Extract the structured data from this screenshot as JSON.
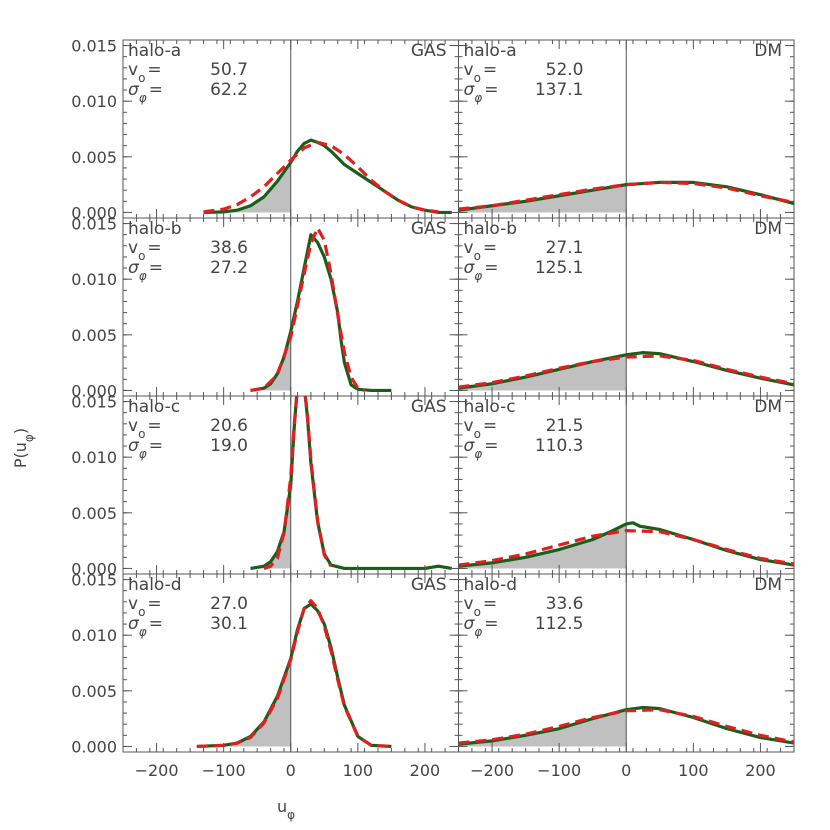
{
  "figure": {
    "ylabel": "P(u",
    "ylabel_sub": "φ",
    "ylabel_close": ")",
    "xlabel": "u",
    "xlabel_sub": "φ"
  },
  "chart_data": {
    "type": "line",
    "xlim": [
      -250,
      250
    ],
    "ylim": [
      -0.0005,
      0.0155
    ],
    "xticks": [
      -200,
      -100,
      0,
      100,
      200
    ],
    "xtick_labels": [
      "−200",
      "−100",
      "0",
      "100",
      "200"
    ],
    "yticks": [
      0.0,
      0.005,
      0.01,
      0.015
    ],
    "ytick_labels": [
      "0.000",
      "0.005",
      "0.010",
      "0.015"
    ],
    "grid": false,
    "vertical_line_x": 0,
    "series_styles": {
      "measured": {
        "color": "#1a5e1a",
        "style": "solid"
      },
      "model": {
        "color": "#e02020",
        "style": "dashed"
      },
      "shade": {
        "color": "#c0c0c0",
        "region": "x < 0 under measured curve"
      }
    },
    "panels": [
      {
        "row": 0,
        "col": 0,
        "halo": "halo-a",
        "component": "GAS",
        "vo_label": "v",
        "vo_sub": "o",
        "vo": "50.7",
        "sigma_label": "σ",
        "sigma_sub": "φ",
        "sigma": "62.2",
        "x": [
          -130,
          -100,
          -80,
          -60,
          -40,
          -20,
          0,
          10,
          20,
          30,
          40,
          50,
          60,
          70,
          80,
          100,
          120,
          140,
          160,
          180,
          200,
          220,
          240
        ],
        "y": [
          0.0,
          5e-05,
          0.0002,
          0.0006,
          0.0014,
          0.0028,
          0.0045,
          0.0055,
          0.0062,
          0.0065,
          0.0063,
          0.006,
          0.0055,
          0.0049,
          0.0043,
          0.0035,
          0.0027,
          0.0019,
          0.0011,
          0.0005,
          0.0002,
          0.0,
          0.0
        ],
        "model_x": [
          -130,
          -100,
          -80,
          -60,
          -40,
          -20,
          0,
          20,
          40,
          60,
          80,
          100,
          120,
          140,
          160,
          180,
          200,
          220
        ],
        "model_y": [
          5e-05,
          0.0003,
          0.0007,
          0.0014,
          0.0023,
          0.0035,
          0.0047,
          0.0058,
          0.0063,
          0.006,
          0.0052,
          0.0041,
          0.0029,
          0.0019,
          0.0011,
          0.0005,
          0.0002,
          5e-05
        ]
      },
      {
        "row": 0,
        "col": 1,
        "halo": "halo-a",
        "component": "DM",
        "vo_label": "v",
        "vo_sub": "o",
        "vo": "52.0",
        "sigma_label": "σ",
        "sigma_sub": "φ",
        "sigma": "137.1",
        "x": [
          -250,
          -200,
          -150,
          -100,
          -50,
          0,
          50,
          100,
          150,
          200,
          250
        ],
        "y": [
          0.0002,
          0.0006,
          0.001,
          0.0015,
          0.002,
          0.0025,
          0.0027,
          0.0027,
          0.0023,
          0.0016,
          0.0008
        ],
        "model_x": [
          -250,
          -200,
          -150,
          -100,
          -50,
          0,
          50,
          100,
          150,
          200,
          250
        ],
        "model_y": [
          0.0003,
          0.0006,
          0.0011,
          0.0016,
          0.0021,
          0.0025,
          0.0027,
          0.0026,
          0.0022,
          0.0015,
          0.0009
        ]
      },
      {
        "row": 1,
        "col": 0,
        "halo": "halo-b",
        "component": "GAS",
        "vo_label": "v",
        "vo_sub": "o",
        "vo": "38.6",
        "sigma_label": "σ",
        "sigma_sub": "φ",
        "sigma": "27.2",
        "x": [
          -60,
          -40,
          -30,
          -20,
          -10,
          0,
          10,
          20,
          30,
          40,
          50,
          60,
          70,
          75,
          80,
          90,
          100,
          120,
          150
        ],
        "y": [
          0.0,
          0.0002,
          0.0006,
          0.0015,
          0.003,
          0.0053,
          0.008,
          0.011,
          0.014,
          0.0133,
          0.012,
          0.01,
          0.007,
          0.0045,
          0.0025,
          0.0005,
          0.0001,
          0.0,
          0.0
        ],
        "model_x": [
          -60,
          -40,
          -20,
          0,
          10,
          20,
          30,
          40,
          50,
          60,
          70,
          80,
          90,
          100,
          110
        ],
        "model_y": [
          0.0,
          0.0002,
          0.0014,
          0.0048,
          0.0076,
          0.0105,
          0.0132,
          0.0146,
          0.0135,
          0.0105,
          0.0068,
          0.0034,
          0.0012,
          0.0002,
          0.0
        ]
      },
      {
        "row": 1,
        "col": 1,
        "halo": "halo-b",
        "component": "DM",
        "vo_label": "v",
        "vo_sub": "o",
        "vo": "27.1",
        "sigma_label": "σ",
        "sigma_sub": "φ",
        "sigma": "125.1",
        "x": [
          -250,
          -200,
          -150,
          -100,
          -50,
          0,
          25,
          50,
          100,
          150,
          200,
          250
        ],
        "y": [
          0.0002,
          0.0006,
          0.0012,
          0.0019,
          0.0026,
          0.0032,
          0.0034,
          0.0033,
          0.0026,
          0.0018,
          0.0011,
          0.0005
        ],
        "model_x": [
          -250,
          -200,
          -150,
          -100,
          -50,
          0,
          50,
          100,
          150,
          200,
          250
        ],
        "model_y": [
          0.0003,
          0.0007,
          0.0013,
          0.002,
          0.0026,
          0.003,
          0.0031,
          0.0027,
          0.0019,
          0.0012,
          0.0006
        ]
      },
      {
        "row": 2,
        "col": 0,
        "halo": "halo-c",
        "component": "GAS",
        "vo_label": "v",
        "vo_sub": "o",
        "vo": "20.6",
        "sigma_label": "σ",
        "sigma_sub": "φ",
        "sigma": "19.0",
        "x": [
          -60,
          -40,
          -30,
          -20,
          -10,
          0,
          5,
          10,
          15,
          20,
          25,
          30,
          40,
          50,
          60,
          80,
          100,
          150,
          200,
          220,
          240
        ],
        "y": [
          0.0,
          0.0002,
          0.0006,
          0.0015,
          0.0033,
          0.0075,
          0.0125,
          0.0165,
          0.0175,
          0.0165,
          0.0135,
          0.0095,
          0.0042,
          0.0013,
          0.0003,
          0.0,
          0.0,
          0.0,
          0.0,
          0.0002,
          0.0
        ],
        "model_x": [
          -40,
          -30,
          -20,
          -10,
          0,
          5,
          10,
          15,
          20,
          25,
          30,
          40,
          50,
          60
        ],
        "model_y": [
          0.0,
          0.0002,
          0.0009,
          0.0032,
          0.0082,
          0.0128,
          0.0162,
          0.0172,
          0.0165,
          0.0137,
          0.0098,
          0.0043,
          0.0012,
          0.0002
        ]
      },
      {
        "row": 2,
        "col": 1,
        "halo": "halo-c",
        "component": "DM",
        "vo_label": "v",
        "vo_sub": "o",
        "vo": "21.5",
        "sigma_label": "σ",
        "sigma_sub": "φ",
        "sigma": "110.3",
        "x": [
          -250,
          -200,
          -150,
          -100,
          -50,
          -20,
          0,
          10,
          20,
          50,
          100,
          150,
          200,
          250
        ],
        "y": [
          0.0002,
          0.0005,
          0.001,
          0.0017,
          0.0026,
          0.0034,
          0.004,
          0.0041,
          0.0038,
          0.0035,
          0.0026,
          0.0016,
          0.0008,
          0.0003
        ],
        "model_x": [
          -250,
          -200,
          -150,
          -100,
          -50,
          0,
          50,
          100,
          150,
          200,
          250
        ],
        "model_y": [
          0.0003,
          0.0007,
          0.0013,
          0.0021,
          0.0029,
          0.0034,
          0.0033,
          0.0026,
          0.0017,
          0.0009,
          0.0004
        ]
      },
      {
        "row": 3,
        "col": 0,
        "halo": "halo-d",
        "component": "GAS",
        "vo_label": "v",
        "vo_sub": "o",
        "vo": "27.0",
        "sigma_label": "σ",
        "sigma_sub": "φ",
        "sigma": "30.1",
        "x": [
          -140,
          -100,
          -80,
          -60,
          -40,
          -20,
          0,
          10,
          20,
          30,
          40,
          50,
          60,
          70,
          80,
          100,
          120,
          150
        ],
        "y": [
          0.0,
          0.0001,
          0.0003,
          0.0009,
          0.0022,
          0.0045,
          0.0079,
          0.0105,
          0.0124,
          0.0128,
          0.0122,
          0.011,
          0.0089,
          0.0062,
          0.0037,
          0.0009,
          0.0001,
          0.0
        ],
        "model_x": [
          -140,
          -100,
          -80,
          -60,
          -40,
          -20,
          0,
          10,
          20,
          30,
          40,
          50,
          60,
          70,
          80,
          100,
          120,
          150
        ],
        "model_y": [
          0.0,
          0.0001,
          0.0003,
          0.0008,
          0.0021,
          0.0043,
          0.0078,
          0.0103,
          0.0124,
          0.0131,
          0.0124,
          0.0108,
          0.0086,
          0.006,
          0.0036,
          0.0009,
          0.0001,
          0.0
        ]
      },
      {
        "row": 3,
        "col": 1,
        "halo": "halo-d",
        "component": "DM",
        "vo_label": "v",
        "vo_sub": "o",
        "vo": "33.6",
        "sigma_label": "σ",
        "sigma_sub": "φ",
        "sigma": "112.5",
        "x": [
          -250,
          -200,
          -150,
          -100,
          -50,
          0,
          25,
          50,
          100,
          150,
          200,
          250
        ],
        "y": [
          0.0002,
          0.0005,
          0.001,
          0.0016,
          0.0025,
          0.0033,
          0.0035,
          0.0034,
          0.0026,
          0.0016,
          0.0008,
          0.0003
        ],
        "model_x": [
          -250,
          -200,
          -150,
          -100,
          -50,
          0,
          50,
          100,
          150,
          200,
          250
        ],
        "model_y": [
          0.0003,
          0.0006,
          0.0011,
          0.0018,
          0.0026,
          0.0032,
          0.0033,
          0.0027,
          0.0018,
          0.001,
          0.0004
        ]
      }
    ]
  }
}
